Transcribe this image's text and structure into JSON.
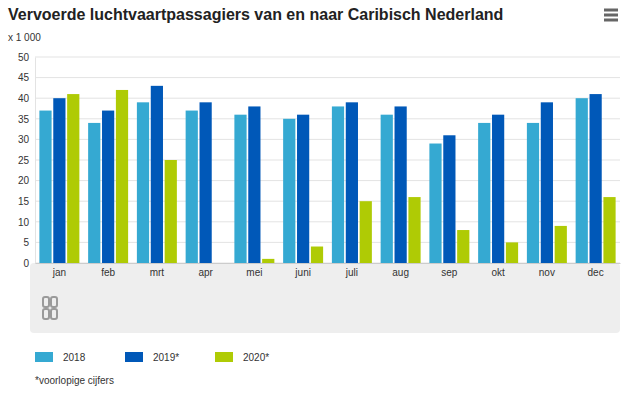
{
  "chart_data": {
    "type": "bar",
    "title": "Vervoerde luchtvaartpassagiers van en naar Caribisch Nederland",
    "y_label": "x 1 000",
    "note": "*voorlopige cijfers",
    "categories": [
      "jan",
      "feb",
      "mrt",
      "apr",
      "mei",
      "juni",
      "juli",
      "aug",
      "sep",
      "okt",
      "nov",
      "dec"
    ],
    "series": [
      {
        "name": "2018",
        "color": "#35a9d2",
        "values": [
          37,
          34,
          39,
          37,
          36,
          35,
          38,
          36,
          29,
          34,
          34,
          40
        ]
      },
      {
        "name": "2019*",
        "color": "#0058b8",
        "values": [
          40,
          37,
          43,
          39,
          38,
          36,
          39,
          38,
          31,
          36,
          39,
          41
        ]
      },
      {
        "name": "2020*",
        "color": "#afcb05",
        "values": [
          41,
          42,
          25,
          0,
          1,
          4,
          15,
          16,
          8,
          5,
          9,
          16
        ]
      }
    ],
    "ylim": [
      0,
      50
    ],
    "yticks": [
      0,
      5,
      10,
      15,
      20,
      25,
      30,
      35,
      40,
      45,
      50
    ],
    "grid": true,
    "legend": "bottom"
  }
}
